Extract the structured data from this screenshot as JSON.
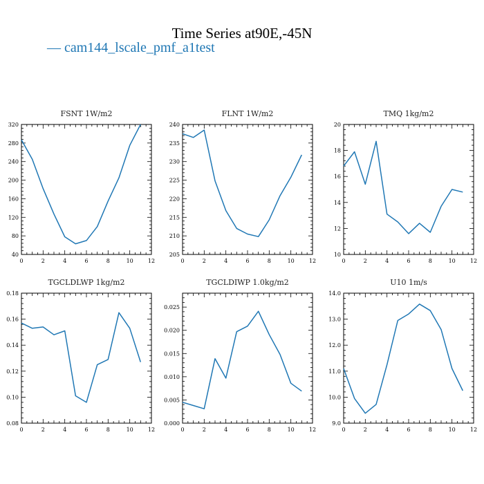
{
  "title": "Time Series at90E,-45N",
  "legend": {
    "dash": "—",
    "label": "cam144_lscale_pmf_a1test",
    "color": "#1f77b4"
  },
  "chart_data": [
    {
      "type": "line",
      "title": "FSNT  1W/m2",
      "x": [
        0,
        1,
        2,
        3,
        4,
        5,
        6,
        7,
        8,
        9,
        10,
        11
      ],
      "series": [
        {
          "values": [
            287,
            245,
            182,
            127,
            78,
            63,
            70,
            100,
            155,
            205,
            275,
            320
          ]
        }
      ],
      "xlim": [
        0,
        12
      ],
      "ylim": [
        40,
        320
      ],
      "xticks": [
        0,
        2,
        4,
        6,
        8,
        10,
        12
      ],
      "yticks": [
        40,
        80,
        120,
        160,
        200,
        240,
        280,
        320
      ],
      "ytick_labels": [
        "40",
        "80",
        "120",
        "160",
        "200",
        "240",
        "280",
        "320"
      ]
    },
    {
      "type": "line",
      "title": "FLNT  1W/m2",
      "x": [
        0,
        1,
        2,
        3,
        4,
        5,
        6,
        7,
        8,
        9,
        10,
        11
      ],
      "series": [
        {
          "values": [
            237.5,
            236.5,
            238.5,
            224.8,
            216.8,
            212.0,
            210.5,
            209.8,
            214.3,
            220.8,
            225.8,
            231.8
          ]
        }
      ],
      "xlim": [
        0,
        12
      ],
      "ylim": [
        205,
        240
      ],
      "xticks": [
        0,
        2,
        4,
        6,
        8,
        10,
        12
      ],
      "yticks": [
        205,
        210,
        215,
        220,
        225,
        230,
        235,
        240
      ],
      "ytick_labels": [
        "205",
        "210",
        "215",
        "220",
        "225",
        "230",
        "235",
        "240"
      ]
    },
    {
      "type": "line",
      "title": "TMQ  1kg/m2",
      "x": [
        0,
        1,
        2,
        3,
        4,
        5,
        6,
        7,
        8,
        9,
        10,
        11
      ],
      "series": [
        {
          "values": [
            16.8,
            17.9,
            15.4,
            18.7,
            13.1,
            12.5,
            11.6,
            12.4,
            11.7,
            13.7,
            15.0,
            14.8
          ]
        }
      ],
      "xlim": [
        0,
        12
      ],
      "ylim": [
        10,
        20
      ],
      "xticks": [
        0,
        2,
        4,
        6,
        8,
        10,
        12
      ],
      "yticks": [
        10,
        12,
        14,
        16,
        18,
        20
      ],
      "ytick_labels": [
        "10",
        "12",
        "14",
        "16",
        "18",
        "20"
      ]
    },
    {
      "type": "line",
      "title": "TGCLDLWP  1kg/m2",
      "x": [
        0,
        1,
        2,
        3,
        4,
        5,
        6,
        7,
        8,
        9,
        10,
        11
      ],
      "series": [
        {
          "values": [
            0.157,
            0.153,
            0.154,
            0.148,
            0.151,
            0.101,
            0.096,
            0.125,
            0.129,
            0.165,
            0.153,
            0.127
          ]
        }
      ],
      "xlim": [
        0,
        12
      ],
      "ylim": [
        0.08,
        0.18
      ],
      "xticks": [
        0,
        2,
        4,
        6,
        8,
        10,
        12
      ],
      "yticks": [
        0.08,
        0.1,
        0.12,
        0.14,
        0.16,
        0.18
      ],
      "ytick_labels": [
        "0.08",
        "0.10",
        "0.12",
        "0.14",
        "0.16",
        "0.18"
      ]
    },
    {
      "type": "line",
      "title": "TGCLDIWP  1.0kg/m2",
      "x": [
        0,
        1,
        2,
        3,
        4,
        5,
        6,
        7,
        8,
        9,
        10,
        11
      ],
      "series": [
        {
          "values": [
            0.0045,
            0.0038,
            0.0031,
            0.0139,
            0.0097,
            0.0197,
            0.0209,
            0.0241,
            0.0191,
            0.0148,
            0.0086,
            0.0069
          ]
        }
      ],
      "xlim": [
        0,
        12
      ],
      "ylim": [
        0,
        0.028
      ],
      "xticks": [
        0,
        2,
        4,
        6,
        8,
        10,
        12
      ],
      "yticks": [
        0,
        0.005,
        0.01,
        0.015,
        0.02,
        0.025
      ],
      "ytick_labels": [
        "0.000",
        "0.005",
        "0.010",
        "0.015",
        "0.020",
        "0.025"
      ]
    },
    {
      "type": "line",
      "title": "U10  1m/s",
      "x": [
        0,
        1,
        2,
        3,
        4,
        5,
        6,
        7,
        8,
        9,
        10,
        11
      ],
      "series": [
        {
          "values": [
            11.1,
            9.95,
            9.38,
            9.72,
            11.25,
            12.95,
            13.2,
            13.58,
            13.33,
            12.6,
            11.1,
            10.25
          ]
        }
      ],
      "xlim": [
        0,
        12
      ],
      "ylim": [
        9,
        14
      ],
      "xticks": [
        0,
        2,
        4,
        6,
        8,
        10,
        12
      ],
      "yticks": [
        9,
        10,
        11,
        12,
        13,
        14
      ],
      "ytick_labels": [
        "9.0",
        "10.0",
        "11.0",
        "12.0",
        "13.0",
        "14.0"
      ]
    }
  ]
}
